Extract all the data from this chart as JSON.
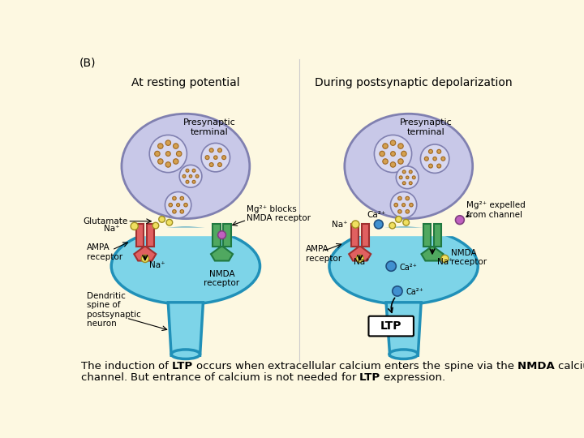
{
  "background_color": "#fdf8e1",
  "panel_label": "(B)",
  "left_title": "At resting potential",
  "right_title": "During postsynaptic depolarization",
  "caption_line1": "The induction of LTP occurs when extracellular calcium enters the spine via the NMDA calcium",
  "caption_line2": "channel. But entrance of calcium is not needed for LTP expression.",
  "caption_bold_words": [
    "LTP",
    "NMDA"
  ],
  "text_color": "#000000",
  "presynaptic_fill": "#c8c8e8",
  "presynaptic_outline": "#8080b0",
  "vesicle_fill": "#d8d8f0",
  "vesicle_outline": "#8080b0",
  "vesicle_dot_fill": "#d4a050",
  "vesicle_dot_outline": "#a06820",
  "synapse_fill": "#7dd4e8",
  "synapse_outline": "#2090b8",
  "ampa_fill": "#e06060",
  "ampa_outline": "#a03030",
  "nmda_fill": "#50a860",
  "nmda_outline": "#207840",
  "mg_fill": "#c060c0",
  "mg_outline": "#804080",
  "na_fill": "#f0e060",
  "na_outline": "#a09020",
  "ca_fill": "#4090d0",
  "ca_outline": "#205080",
  "glutamate_fill": "#f0e060",
  "glutamate_outline": "#a09020",
  "ltp_box": "#ffffff",
  "ltp_border": "#000000"
}
